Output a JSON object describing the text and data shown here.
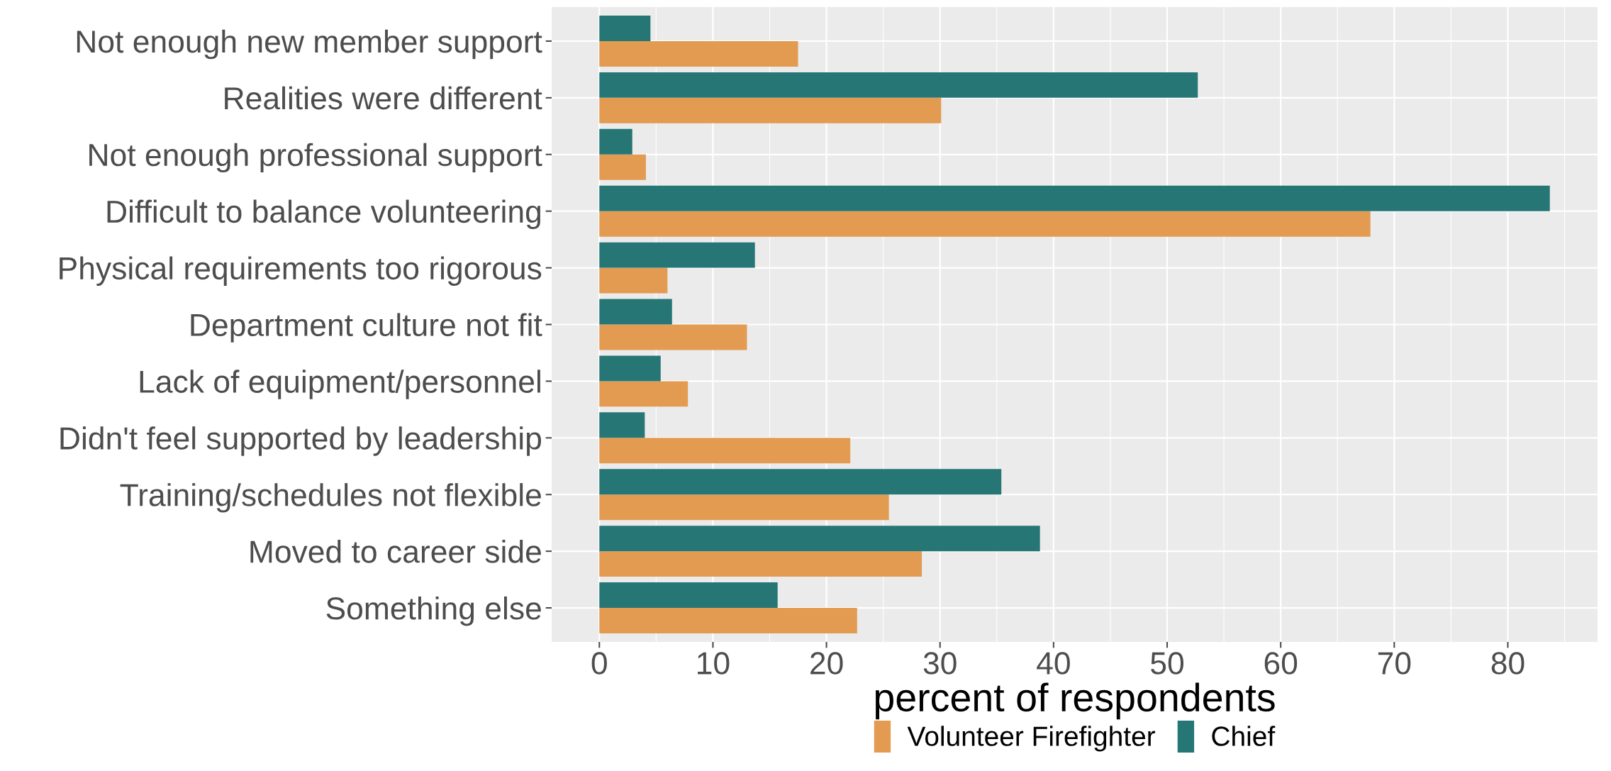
{
  "chart_data": {
    "type": "bar",
    "orientation": "horizontal",
    "xlabel": "percent of respondents",
    "categories": [
      "Not enough new member support",
      "Realities were different",
      "Not enough professional support",
      "Difficult to balance volunteering",
      "Physical requirements too rigorous",
      "Department culture not fit",
      "Lack of equipment/personnel",
      "Didn't feel supported by leadership",
      "Training/schedules not flexible",
      "Moved to career side",
      "Something else"
    ],
    "series": [
      {
        "name": "Volunteer Firefighter",
        "color": "#e39b52",
        "values": [
          17.5,
          30.1,
          4.1,
          67.9,
          6.0,
          13.0,
          7.8,
          22.1,
          25.5,
          28.4,
          22.7
        ]
      },
      {
        "name": "Chief",
        "color": "#267676",
        "values": [
          4.5,
          52.7,
          2.9,
          83.7,
          13.7,
          6.4,
          5.4,
          4.0,
          35.4,
          38.8,
          15.7
        ]
      }
    ],
    "xlim": [
      -4.2,
      87.9
    ],
    "xticks": [
      0,
      10,
      20,
      30,
      40,
      50,
      60,
      70,
      80
    ],
    "grid": true,
    "legend": "bottom"
  }
}
